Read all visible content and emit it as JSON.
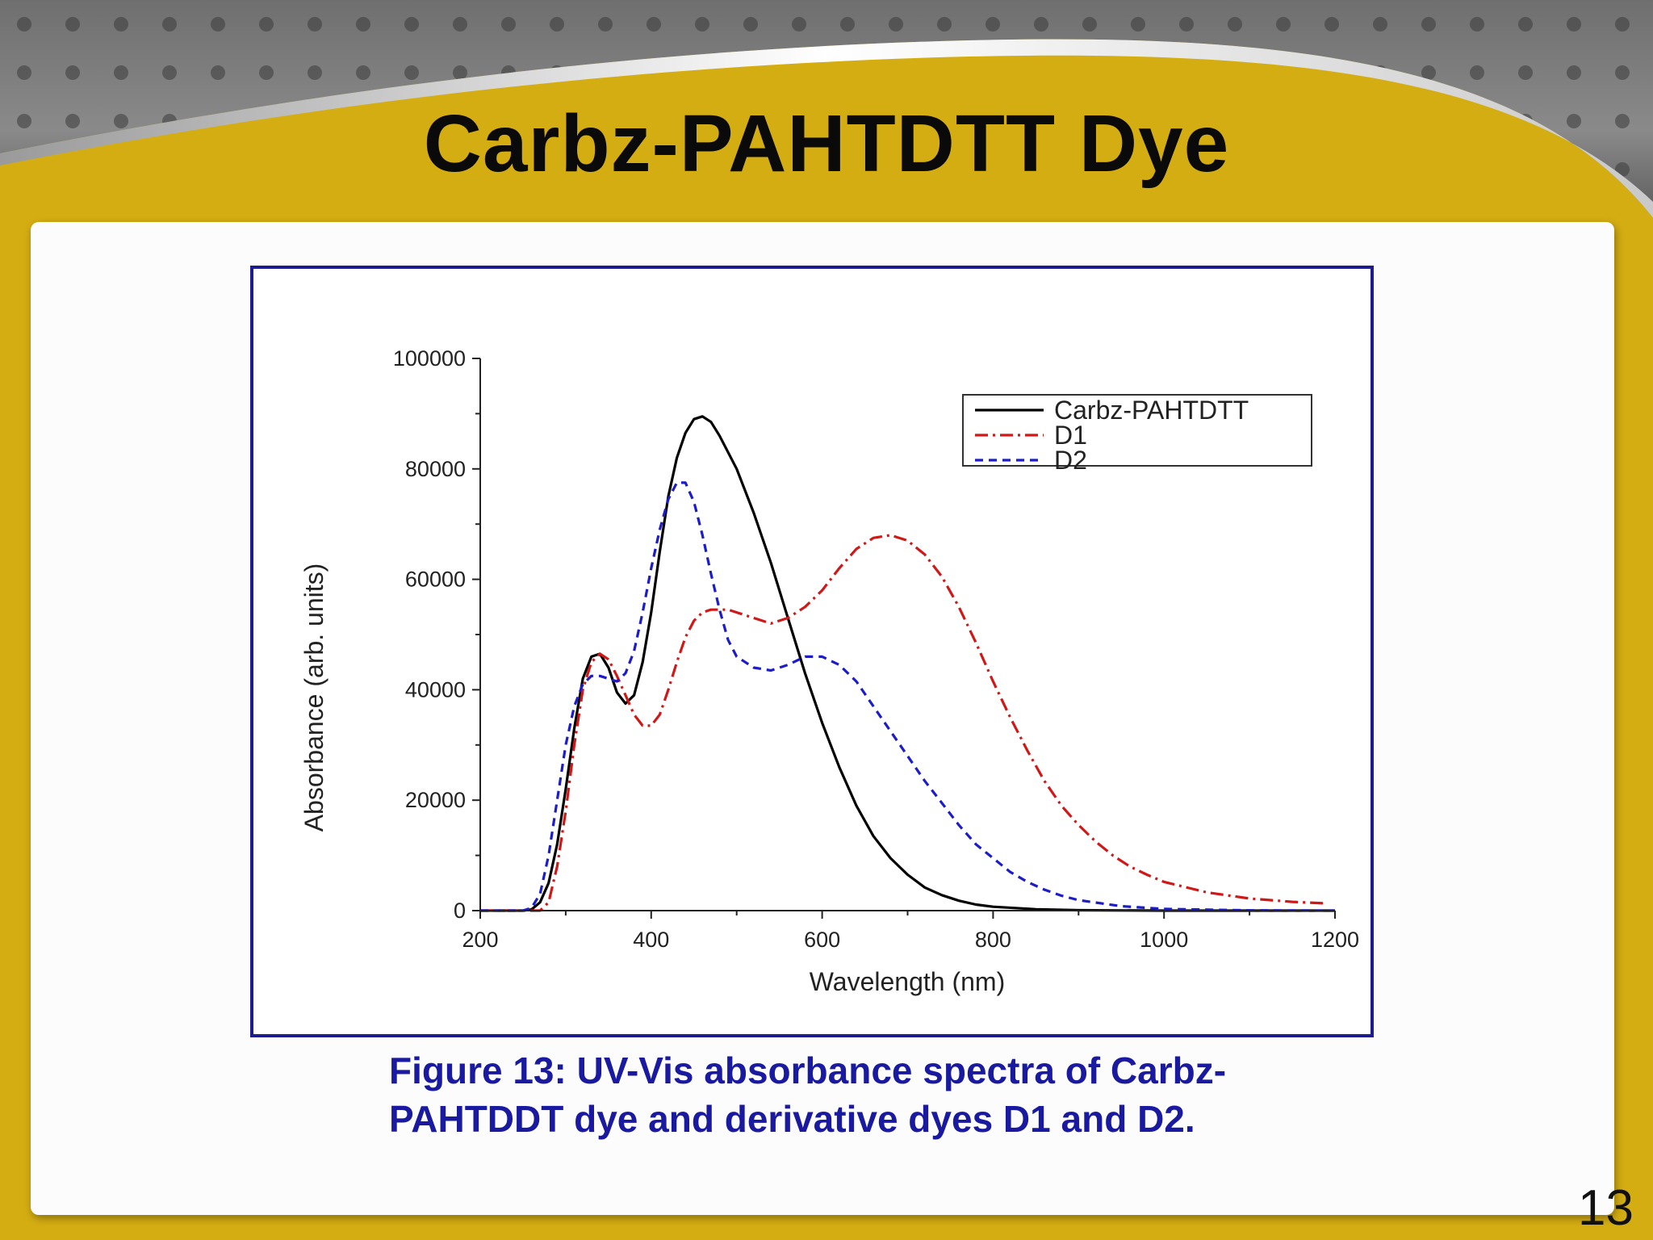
{
  "slide": {
    "title": "Carbz-PAHTDTT Dye",
    "caption_line1": "Figure 13: UV-Vis absorbance spectra of Carbz-",
    "caption_line2": "PAHTDDT dye and derivative dyes D1 and D2.",
    "page_number": "13",
    "colors": {
      "frame": "#d4ad12",
      "caption": "#1a1aa0",
      "chart_border": "#1c1c8c"
    }
  },
  "chart_data": {
    "type": "line",
    "title": "",
    "xlabel": "Wavelength (nm)",
    "ylabel": "Absorbance (arb. units)",
    "xlim": [
      200,
      1200
    ],
    "ylim": [
      0,
      100000
    ],
    "xticks": [
      "200",
      "400",
      "600",
      "800",
      "1000",
      "1200"
    ],
    "yticks": [
      "0",
      "20000",
      "40000",
      "60000",
      "80000",
      "100000"
    ],
    "legend_position": "top-right",
    "series": [
      {
        "name": "Carbz-PAHTDTT",
        "color": "#000000",
        "style": "solid",
        "points": [
          [
            200,
            0
          ],
          [
            250,
            0
          ],
          [
            260,
            200
          ],
          [
            270,
            1500
          ],
          [
            280,
            5000
          ],
          [
            290,
            12000
          ],
          [
            300,
            22000
          ],
          [
            310,
            33000
          ],
          [
            320,
            42000
          ],
          [
            330,
            46000
          ],
          [
            340,
            46500
          ],
          [
            350,
            44000
          ],
          [
            360,
            39500
          ],
          [
            370,
            37500
          ],
          [
            380,
            39000
          ],
          [
            390,
            45000
          ],
          [
            400,
            54000
          ],
          [
            410,
            65000
          ],
          [
            420,
            75000
          ],
          [
            430,
            82000
          ],
          [
            440,
            86500
          ],
          [
            450,
            89000
          ],
          [
            460,
            89500
          ],
          [
            470,
            88500
          ],
          [
            480,
            86000
          ],
          [
            500,
            80000
          ],
          [
            520,
            72000
          ],
          [
            540,
            63000
          ],
          [
            560,
            53000
          ],
          [
            580,
            43000
          ],
          [
            600,
            34000
          ],
          [
            620,
            26000
          ],
          [
            640,
            19000
          ],
          [
            660,
            13500
          ],
          [
            680,
            9500
          ],
          [
            700,
            6500
          ],
          [
            720,
            4200
          ],
          [
            740,
            2800
          ],
          [
            760,
            1800
          ],
          [
            780,
            1100
          ],
          [
            800,
            700
          ],
          [
            850,
            250
          ],
          [
            900,
            80
          ],
          [
            1000,
            0
          ],
          [
            1200,
            0
          ]
        ]
      },
      {
        "name": "D1",
        "color": "#d01818",
        "style": "dashdot",
        "points": [
          [
            200,
            0
          ],
          [
            270,
            0
          ],
          [
            280,
            1500
          ],
          [
            290,
            8000
          ],
          [
            300,
            18000
          ],
          [
            310,
            30000
          ],
          [
            320,
            40000
          ],
          [
            330,
            45000
          ],
          [
            340,
            46500
          ],
          [
            350,
            45500
          ],
          [
            360,
            42500
          ],
          [
            370,
            39000
          ],
          [
            380,
            35500
          ],
          [
            390,
            33500
          ],
          [
            400,
            33500
          ],
          [
            410,
            35500
          ],
          [
            420,
            40000
          ],
          [
            430,
            45000
          ],
          [
            440,
            49500
          ],
          [
            450,
            52500
          ],
          [
            460,
            54000
          ],
          [
            470,
            54500
          ],
          [
            480,
            54500
          ],
          [
            490,
            54500
          ],
          [
            500,
            54000
          ],
          [
            520,
            53000
          ],
          [
            540,
            52000
          ],
          [
            560,
            53000
          ],
          [
            580,
            55000
          ],
          [
            600,
            58000
          ],
          [
            620,
            62000
          ],
          [
            640,
            65500
          ],
          [
            660,
            67500
          ],
          [
            680,
            68000
          ],
          [
            700,
            67000
          ],
          [
            720,
            64500
          ],
          [
            740,
            60500
          ],
          [
            760,
            55000
          ],
          [
            780,
            48500
          ],
          [
            800,
            41500
          ],
          [
            820,
            35000
          ],
          [
            840,
            29000
          ],
          [
            860,
            23500
          ],
          [
            880,
            19000
          ],
          [
            900,
            15500
          ],
          [
            920,
            12500
          ],
          [
            940,
            10000
          ],
          [
            960,
            8000
          ],
          [
            980,
            6500
          ],
          [
            1000,
            5200
          ],
          [
            1050,
            3300
          ],
          [
            1100,
            2200
          ],
          [
            1150,
            1600
          ],
          [
            1190,
            1300
          ]
        ]
      },
      {
        "name": "D2",
        "color": "#1c1cc8",
        "style": "dashed",
        "points": [
          [
            200,
            0
          ],
          [
            250,
            0
          ],
          [
            260,
            500
          ],
          [
            270,
            3000
          ],
          [
            280,
            10000
          ],
          [
            290,
            20000
          ],
          [
            300,
            30000
          ],
          [
            310,
            37000
          ],
          [
            320,
            41000
          ],
          [
            330,
            42500
          ],
          [
            340,
            42500
          ],
          [
            350,
            42000
          ],
          [
            360,
            41500
          ],
          [
            370,
            43000
          ],
          [
            380,
            47000
          ],
          [
            390,
            54000
          ],
          [
            400,
            62000
          ],
          [
            410,
            69000
          ],
          [
            420,
            74500
          ],
          [
            430,
            77500
          ],
          [
            440,
            77500
          ],
          [
            450,
            74000
          ],
          [
            460,
            68000
          ],
          [
            470,
            61000
          ],
          [
            480,
            54500
          ],
          [
            490,
            49000
          ],
          [
            500,
            46000
          ],
          [
            520,
            44000
          ],
          [
            540,
            43500
          ],
          [
            560,
            44500
          ],
          [
            580,
            46000
          ],
          [
            600,
            46000
          ],
          [
            620,
            44500
          ],
          [
            640,
            41500
          ],
          [
            660,
            37000
          ],
          [
            680,
            32500
          ],
          [
            700,
            28000
          ],
          [
            720,
            23500
          ],
          [
            740,
            19500
          ],
          [
            760,
            15500
          ],
          [
            780,
            12000
          ],
          [
            800,
            9500
          ],
          [
            820,
            7000
          ],
          [
            840,
            5200
          ],
          [
            860,
            3800
          ],
          [
            880,
            2700
          ],
          [
            900,
            1900
          ],
          [
            950,
            800
          ],
          [
            1000,
            300
          ],
          [
            1100,
            50
          ],
          [
            1200,
            0
          ]
        ]
      }
    ]
  }
}
